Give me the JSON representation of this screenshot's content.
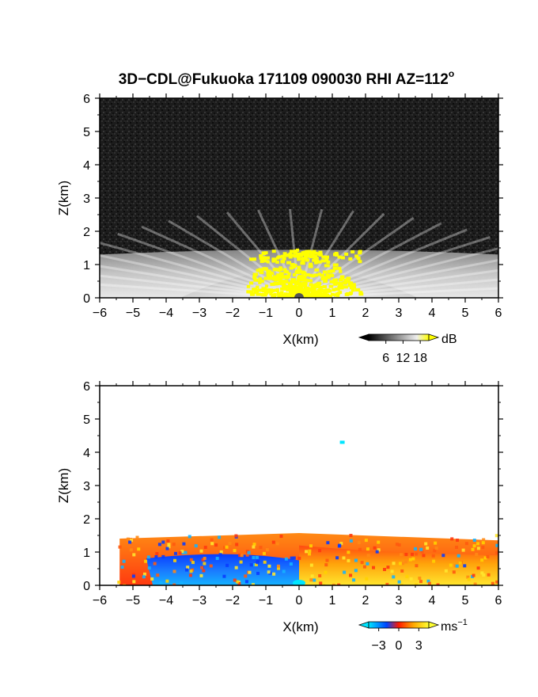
{
  "chart_data": [
    {
      "type": "heatmap",
      "title": "3D−CDL@Fukuoka 171109 090030 RHI AZ=112",
      "title_superscript": "o",
      "xlabel": "X(km)",
      "ylabel": "Z(km)",
      "xlim": [
        -6,
        6
      ],
      "ylim": [
        0,
        6
      ],
      "x_ticks": [
        -6,
        -5,
        -4,
        -3,
        -2,
        -1,
        0,
        1,
        2,
        3,
        4,
        5,
        6
      ],
      "y_ticks": [
        0,
        1,
        2,
        3,
        4,
        5,
        6
      ],
      "colorbar": {
        "unit": "dB",
        "ticks": [
          6,
          12,
          18
        ],
        "colors": [
          "#000000",
          "#4a4a4a",
          "#9a9a9a",
          "#e6e6e6",
          "#ffff00"
        ]
      },
      "layers": [
        {
          "name": "background",
          "color": "#1c1c1c",
          "z_range": [
            0,
            6
          ]
        },
        {
          "name": "boundary_layer",
          "color": "#d8d8d8",
          "top_z_at_center": 1.45,
          "top_z_at_edges": 1.3
        },
        {
          "name": "high_signal",
          "color": "#ffff00",
          "x_range": [
            -1.7,
            1.9
          ],
          "z_range": [
            0,
            1.45
          ]
        }
      ]
    },
    {
      "type": "heatmap",
      "xlabel": "X(km)",
      "ylabel": "Z(km)",
      "xlim": [
        -6,
        6
      ],
      "ylim": [
        0,
        6
      ],
      "x_ticks": [
        -6,
        -5,
        -4,
        -3,
        -2,
        -1,
        0,
        1,
        2,
        3,
        4,
        5,
        6
      ],
      "y_ticks": [
        0,
        1,
        2,
        3,
        4,
        5,
        6
      ],
      "colorbar": {
        "unit": "ms",
        "unit_superscript": "−1",
        "ticks": [
          -3,
          0,
          3
        ],
        "tick_labels": [
          "−3",
          "0",
          "3"
        ],
        "colors": [
          "#00e5ff",
          "#0044ff",
          "#ff1a00",
          "#ffaa00",
          "#ffff33"
        ]
      },
      "regions": [
        {
          "name": "negative_velocity",
          "x_range": [
            -5.4,
            0
          ],
          "z_range": [
            0,
            1.0
          ],
          "color": "#1a73ff"
        },
        {
          "name": "positive_velocity_upper",
          "x_range": [
            -5.4,
            6
          ],
          "z_range": [
            1.0,
            1.5
          ],
          "color": "#ff5a10"
        },
        {
          "name": "positive_velocity_lower",
          "x_range": [
            0,
            6
          ],
          "z_range": [
            0,
            1.0
          ],
          "color": "#ffcc00"
        },
        {
          "name": "isolated_echo",
          "x": 1.3,
          "z": 4.3,
          "color": "#00e5ff"
        }
      ]
    }
  ]
}
